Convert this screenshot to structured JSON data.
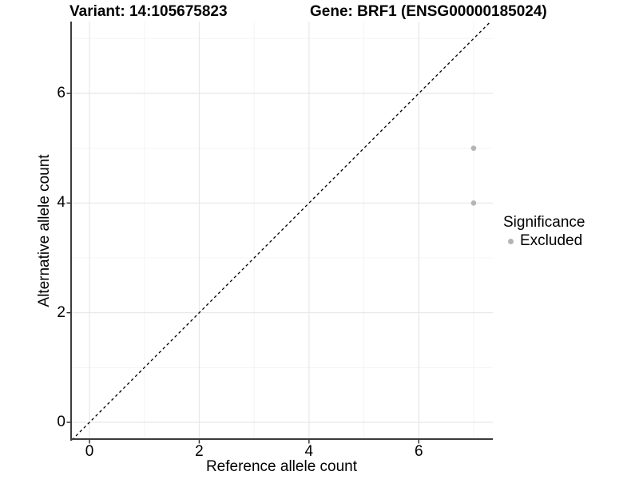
{
  "figure": {
    "background": "#ffffff"
  },
  "chart_data": {
    "type": "scatter",
    "title_left": "Variant: 14:105675823",
    "title_right": "Gene: BRF1 (ENSG00000185024)",
    "xlabel": "Reference allele count",
    "ylabel": "Alternative allele count",
    "xlim": [
      -0.35,
      7.35
    ],
    "ylim": [
      -0.32,
      7.31
    ],
    "x_major_ticks": [
      0,
      2,
      4,
      6
    ],
    "y_major_ticks": [
      0,
      2,
      4,
      6
    ],
    "x_tick_labels": [
      "0",
      "2",
      "4",
      "6"
    ],
    "y_tick_labels": [
      "0",
      "2",
      "4",
      "6"
    ],
    "x_minor_gridlines": [
      1,
      3,
      5,
      7
    ],
    "y_minor_gridlines": [
      1,
      3,
      5,
      7
    ],
    "grid": "on",
    "identity_line": {
      "equation": "y = x",
      "style": "dashed",
      "color": "#000000"
    },
    "series": [
      {
        "name": "Excluded",
        "color": "#b5b5b5",
        "points": [
          {
            "x": 7,
            "y": 5
          },
          {
            "x": 7,
            "y": 4
          }
        ]
      }
    ],
    "legend": {
      "title": "Significance",
      "position": "right",
      "items": [
        {
          "label": "Excluded",
          "color": "#b5b5b5"
        }
      ]
    }
  },
  "colors": {
    "background": "#ffffff",
    "major_grid": "#e7e7e7",
    "minor_grid": "#f4f4f4",
    "axis_line": "#3c3c3c",
    "tick_mark": "#333333",
    "point": "#b5b5b5",
    "identity_line": "#000000",
    "text": "#000000"
  }
}
